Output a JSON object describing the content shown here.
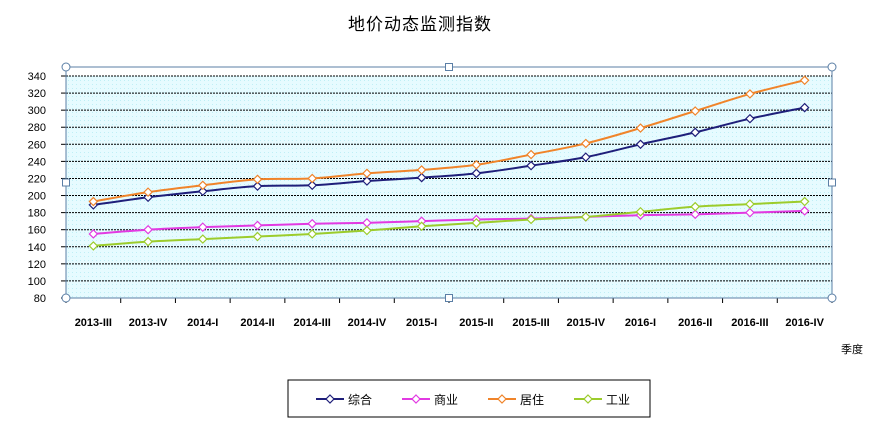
{
  "chart_data": {
    "type": "line",
    "title": "地价动态监测指数",
    "xlabel": "季度",
    "ylabel": "",
    "categories": [
      "2013-III",
      "2013-IV",
      "2014-I",
      "2014-II",
      "2014-III",
      "2014-IV",
      "2015-I",
      "2015-II",
      "2015-III",
      "2015-IV",
      "2016-I",
      "2016-II",
      "2016-III",
      "2016-IV"
    ],
    "ylim": [
      80,
      340
    ],
    "yticks": [
      80,
      100,
      120,
      140,
      160,
      180,
      200,
      220,
      240,
      260,
      280,
      300,
      320,
      340
    ],
    "grid": true,
    "legend_position": "bottom",
    "series": [
      {
        "name": "综合",
        "color": "#1f1f7a",
        "values": [
          189,
          198,
          205,
          211,
          212,
          217,
          221,
          226,
          235,
          245,
          260,
          274,
          290,
          303
        ]
      },
      {
        "name": "商业",
        "color": "#e23ae2",
        "values": [
          155,
          160,
          163,
          165,
          167,
          168,
          170,
          172,
          173,
          175,
          177,
          178,
          180,
          182
        ]
      },
      {
        "name": "居住",
        "color": "#f0842a",
        "values": [
          193,
          204,
          212,
          219,
          220,
          226,
          230,
          236,
          248,
          261,
          279,
          299,
          319,
          335
        ]
      },
      {
        "name": "工业",
        "color": "#9ccc2c",
        "values": [
          141,
          146,
          149,
          152,
          155,
          159,
          164,
          168,
          172,
          175,
          181,
          187,
          190,
          193
        ]
      }
    ]
  }
}
